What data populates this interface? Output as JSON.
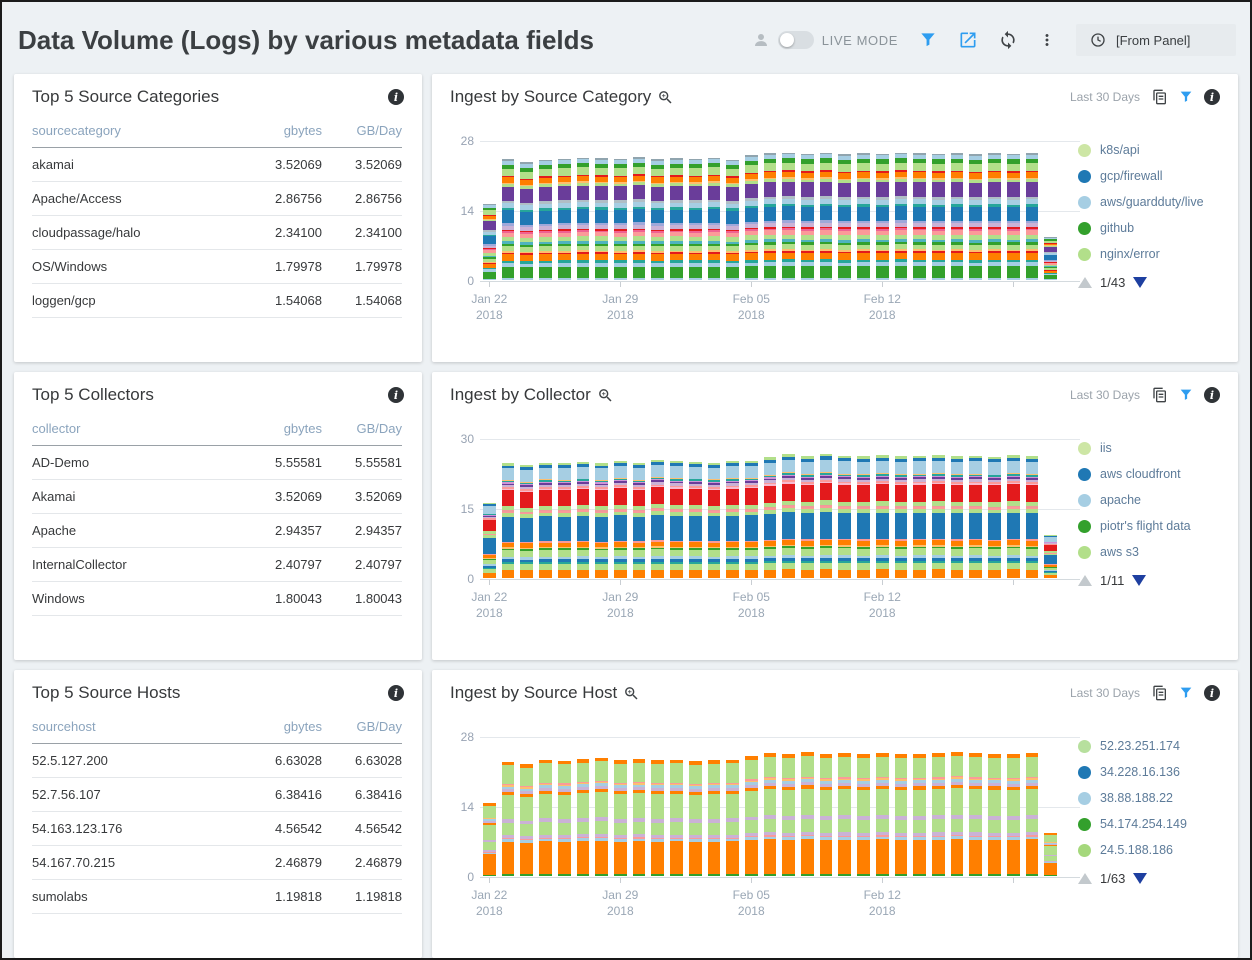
{
  "header": {
    "title": "Data Volume (Logs) by various metadata fields",
    "live_mode_label": "LIVE MODE",
    "live_mode_on": false,
    "time_range_label": "[From Panel]",
    "icons": [
      "user-icon",
      "live-mode-toggle",
      "filter-icon",
      "share-icon",
      "refresh-icon",
      "kebab-menu-icon",
      "clock-icon"
    ]
  },
  "colors": {
    "accent_blue": "#2e9df0",
    "page_bg": "#edf1f4",
    "panel_bg": "#ffffff",
    "table_header_text": "#8ba4bd",
    "axis_text": "#98a3b3",
    "legend_text": "#5d7b99",
    "pagination_down_arrow": "#1e3fa0"
  },
  "tables": [
    {
      "title": "Top 5 Source Categories",
      "columns": [
        "sourcecategory",
        "gbytes",
        "GB/Day"
      ],
      "rows": [
        [
          "akamai",
          "3.52069",
          "3.52069"
        ],
        [
          "Apache/Access",
          "2.86756",
          "2.86756"
        ],
        [
          "cloudpassage/halo",
          "2.34100",
          "2.34100"
        ],
        [
          "OS/Windows",
          "1.79978",
          "1.79978"
        ],
        [
          "loggen/gcp",
          "1.54068",
          "1.54068"
        ]
      ]
    },
    {
      "title": "Top 5 Collectors",
      "columns": [
        "collector",
        "gbytes",
        "GB/Day"
      ],
      "rows": [
        [
          "AD-Demo",
          "5.55581",
          "5.55581"
        ],
        [
          "Akamai",
          "3.52069",
          "3.52069"
        ],
        [
          "Apache",
          "2.94357",
          "2.94357"
        ],
        [
          "InternalCollector",
          "2.40797",
          "2.40797"
        ],
        [
          "Windows",
          "1.80043",
          "1.80043"
        ]
      ]
    },
    {
      "title": "Top 5 Source Hosts",
      "columns": [
        "sourcehost",
        "gbytes",
        "GB/Day"
      ],
      "rows": [
        [
          "52.5.127.200",
          "6.63028",
          "6.63028"
        ],
        [
          "52.7.56.107",
          "6.38416",
          "6.38416"
        ],
        [
          "54.163.123.176",
          "4.56542",
          "4.56542"
        ],
        [
          "54.167.70.215",
          "2.46879",
          "2.46879"
        ],
        [
          "sumolabs",
          "1.19818",
          "1.19818"
        ]
      ]
    }
  ],
  "chart_data": [
    {
      "type": "bar",
      "stacked": true,
      "title": "Ingest by Source Category",
      "time_label": "Last 30 Days",
      "x_range": "Jan 22 2018 - Feb 21 2018, one bar per day",
      "ylim": [
        0,
        28
      ],
      "yticks": [
        0,
        14,
        28
      ],
      "x_ticks": [
        {
          "index": 0,
          "label": "Jan 22",
          "year": "2018"
        },
        {
          "index": 7,
          "label": "Jan 29",
          "year": "2018"
        },
        {
          "index": 14,
          "label": "Feb 05",
          "year": "2018"
        },
        {
          "index": 21,
          "label": "Feb 12",
          "year": "2018"
        },
        {
          "index": 28,
          "label": "",
          "year": ""
        }
      ],
      "values": [
        15.2,
        24.2,
        23.6,
        24.1,
        24.3,
        24.5,
        24.4,
        24.3,
        24.6,
        24.2,
        24.4,
        24.3,
        24.5,
        24.1,
        25.0,
        25.4,
        25.5,
        25.3,
        25.5,
        25.2,
        25.4,
        25.3,
        25.5,
        25.4,
        25.3,
        25.4,
        25.2,
        25.4,
        25.3,
        25.4,
        8.6
      ],
      "segment_pattern": [
        {
          "c": "#a6cee3",
          "w": 1.0
        },
        {
          "c": "#33a02c",
          "w": 6.2
        },
        {
          "c": "#a6cee3",
          "w": 2.0
        },
        {
          "c": "#26a69a",
          "w": 1.5
        },
        {
          "c": "#ff7f00",
          "w": 3.5
        },
        {
          "c": "#e31a1c",
          "w": 0.8
        },
        {
          "c": "#fdbf6f",
          "w": 1.0
        },
        {
          "c": "#b2df8a",
          "w": 2.5
        },
        {
          "c": "#33a02c",
          "w": 1.2
        },
        {
          "c": "#4fb3bf",
          "w": 1.5
        },
        {
          "c": "#b2df8a",
          "w": 2.5
        },
        {
          "c": "#fb9a99",
          "w": 2.2
        },
        {
          "c": "#f06292",
          "w": 1.0
        },
        {
          "c": "#e31a1c",
          "w": 0.8
        },
        {
          "c": "#cab2d6",
          "w": 2.2
        },
        {
          "c": "#9fa8da",
          "w": 1.2
        },
        {
          "c": "#1f78b4",
          "w": 7.2
        },
        {
          "c": "#26a69a",
          "w": 1.2
        },
        {
          "c": "#a6cee3",
          "w": 2.6
        },
        {
          "c": "#b0bec5",
          "w": 1.5
        },
        {
          "c": "#6a3d9a",
          "w": 7.6
        },
        {
          "c": "#b2df8a",
          "w": 1.5
        },
        {
          "c": "#fdbf6f",
          "w": 0.8
        },
        {
          "c": "#ff7f00",
          "w": 2.8
        },
        {
          "c": "#e31a1c",
          "w": 0.8
        },
        {
          "c": "#b2df8a",
          "w": 4.0
        },
        {
          "c": "#33a02c",
          "w": 2.2
        },
        {
          "c": "#a6cee3",
          "w": 2.2
        },
        {
          "c": "#90a4ae",
          "w": 0.8
        }
      ],
      "legend": [
        {
          "label": "k8s/api",
          "color": "#cde6a5"
        },
        {
          "label": "gcp/firewall",
          "color": "#1f78b4"
        },
        {
          "label": "aws/guardduty/live",
          "color": "#a6cee3"
        },
        {
          "label": "github",
          "color": "#33a02c"
        },
        {
          "label": "nginx/error",
          "color": "#b2df8a"
        }
      ],
      "legend_pagination": "1/43"
    },
    {
      "type": "bar",
      "stacked": true,
      "title": "Ingest by Collector",
      "time_label": "Last 30 Days",
      "x_range": "Jan 22 2018 - Feb 21 2018, one bar per day",
      "ylim": [
        0,
        30
      ],
      "yticks": [
        0,
        15,
        30
      ],
      "x_ticks": [
        {
          "index": 0,
          "label": "Jan 22",
          "year": "2018"
        },
        {
          "index": 7,
          "label": "Jan 29",
          "year": "2018"
        },
        {
          "index": 14,
          "label": "Feb 05",
          "year": "2018"
        },
        {
          "index": 21,
          "label": "Feb 12",
          "year": "2018"
        },
        {
          "index": 28,
          "label": "",
          "year": ""
        }
      ],
      "values": [
        16.2,
        24.6,
        24.2,
        24.8,
        24.7,
        25.0,
        24.6,
        25.2,
        24.7,
        25.4,
        25.1,
        25.0,
        24.8,
        25.1,
        25.2,
        25.9,
        26.5,
        26.1,
        26.6,
        26.2,
        26.1,
        26.3,
        26.1,
        26.2,
        26.3,
        26.1,
        26.2,
        26.0,
        26.3,
        26.1,
        9.2
      ],
      "segment_pattern": [
        {
          "c": "#ff7f00",
          "w": 5.5
        },
        {
          "c": "#b2df8a",
          "w": 4.0
        },
        {
          "c": "#26a69a",
          "w": 1.5
        },
        {
          "c": "#1f78b4",
          "w": 1.8
        },
        {
          "c": "#a6cee3",
          "w": 1.8
        },
        {
          "c": "#b2df8a",
          "w": 4.5
        },
        {
          "c": "#33a02c",
          "w": 1.2
        },
        {
          "c": "#fdbf6f",
          "w": 0.8
        },
        {
          "c": "#ff7f00",
          "w": 3.2
        },
        {
          "c": "#fb9a99",
          "w": 0.8
        },
        {
          "c": "#1f78b4",
          "w": 17.0
        },
        {
          "c": "#b2df8a",
          "w": 2.5
        },
        {
          "c": "#fb9a99",
          "w": 1.2
        },
        {
          "c": "#ef9a9a",
          "w": 0.8
        },
        {
          "c": "#b2df8a",
          "w": 2.8
        },
        {
          "c": "#e31a1c",
          "w": 11.0
        },
        {
          "c": "#f8bbd0",
          "w": 0.8
        },
        {
          "c": "#fb9a99",
          "w": 1.2
        },
        {
          "c": "#cab2d6",
          "w": 1.5
        },
        {
          "c": "#6a3d9a",
          "w": 1.2
        },
        {
          "c": "#ce93d8",
          "w": 0.8
        },
        {
          "c": "#26a69a",
          "w": 1.0
        },
        {
          "c": "#fdbf6f",
          "w": 0.6
        },
        {
          "c": "#a6cee3",
          "w": 8.0
        },
        {
          "c": "#1f78b4",
          "w": 2.0
        },
        {
          "c": "#b2df8a",
          "w": 1.5
        }
      ],
      "legend": [
        {
          "label": "iis",
          "color": "#cde6a5"
        },
        {
          "label": "aws cloudfront",
          "color": "#1f78b4"
        },
        {
          "label": "apache",
          "color": "#a6cee3"
        },
        {
          "label": "piotr's flight data",
          "color": "#33a02c"
        },
        {
          "label": "aws s3",
          "color": "#b2df8a"
        }
      ],
      "legend_pagination": "1/11"
    },
    {
      "type": "bar",
      "stacked": true,
      "title": "Ingest by Source Host",
      "time_label": "Last 30 Days",
      "x_range": "Jan 22 2018 - Feb 21 2018, one bar per day",
      "ylim": [
        0,
        28
      ],
      "yticks": [
        0,
        14,
        28
      ],
      "x_ticks": [
        {
          "index": 0,
          "label": "Jan 22",
          "year": "2018"
        },
        {
          "index": 7,
          "label": "Jan 29",
          "year": "2018"
        },
        {
          "index": 14,
          "label": "Feb 05",
          "year": "2018"
        },
        {
          "index": 21,
          "label": "Feb 12",
          "year": "2018"
        },
        {
          "index": 28,
          "label": "",
          "year": ""
        }
      ],
      "values": [
        14.6,
        22.9,
        22.4,
        23.3,
        23.1,
        23.5,
        23.7,
        23.2,
        23.4,
        23.2,
        23.3,
        23.0,
        23.2,
        23.3,
        24.1,
        24.7,
        24.4,
        24.8,
        24.4,
        24.6,
        24.4,
        24.7,
        24.4,
        24.5,
        24.6,
        24.9,
        24.6,
        24.5,
        24.4,
        24.7,
        8.6
      ],
      "segment_pattern": [
        {
          "c": "#33a02c",
          "w": 1.2
        },
        {
          "c": "#ff7f00",
          "w": 24.0
        },
        {
          "c": "#a6cee3",
          "w": 2.0
        },
        {
          "c": "#fb9a99",
          "w": 0.8
        },
        {
          "c": "#cab2d6",
          "w": 2.2
        },
        {
          "c": "#b2df8a",
          "w": 9.0
        },
        {
          "c": "#cab2d6",
          "w": 2.8
        },
        {
          "c": "#b2df8a",
          "w": 18.0
        },
        {
          "c": "#ff7f00",
          "w": 2.2
        },
        {
          "c": "#cab2d6",
          "w": 2.2
        },
        {
          "c": "#a6cee3",
          "w": 2.0
        },
        {
          "c": "#fdbf6f",
          "w": 1.0
        },
        {
          "c": "#fb9a99",
          "w": 0.8
        },
        {
          "c": "#b2df8a",
          "w": 14.0
        },
        {
          "c": "#ff7f00",
          "w": 2.8
        }
      ],
      "legend": [
        {
          "label": "52.23.251.174",
          "color": "#b7e09e"
        },
        {
          "label": "34.228.16.136",
          "color": "#1f78b4"
        },
        {
          "label": "38.88.188.22",
          "color": "#a6cee3"
        },
        {
          "label": "54.174.254.149",
          "color": "#33a02c"
        },
        {
          "label": "24.5.188.186",
          "color": "#a5d87c"
        }
      ],
      "legend_pagination": "1/63"
    }
  ]
}
